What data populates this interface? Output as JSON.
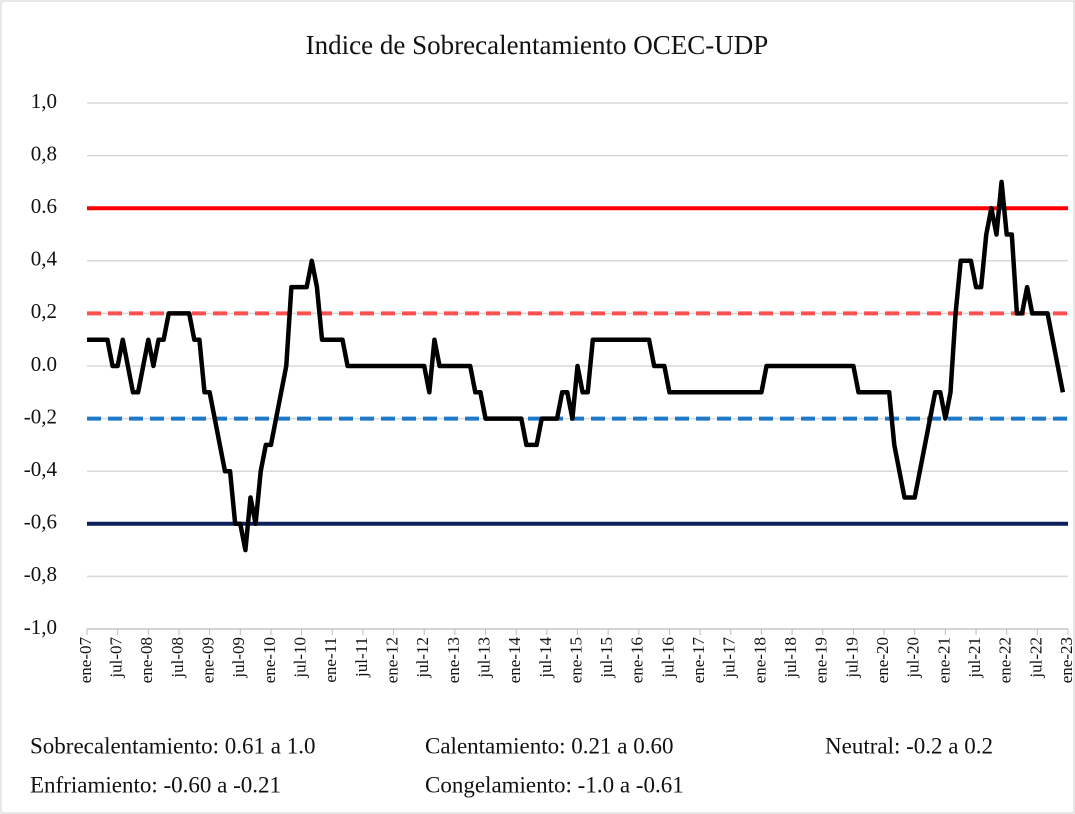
{
  "chart_data": {
    "type": "line",
    "title": "Indice de Sobrecalentamiento OCEC-UDP",
    "categories": [
      "ene-07",
      null,
      null,
      null,
      null,
      null,
      "jul-07",
      null,
      null,
      null,
      null,
      null,
      "ene-08",
      null,
      null,
      null,
      null,
      null,
      "jul-08",
      null,
      null,
      null,
      null,
      null,
      "ene-09",
      null,
      null,
      null,
      null,
      null,
      "jul-09",
      null,
      null,
      null,
      null,
      null,
      "ene-10",
      null,
      null,
      null,
      null,
      null,
      "jul-10",
      null,
      null,
      null,
      null,
      null,
      "ene-11",
      null,
      null,
      null,
      null,
      null,
      "jul-11",
      null,
      null,
      null,
      null,
      null,
      "ene-12",
      null,
      null,
      null,
      null,
      null,
      "jul-12",
      null,
      null,
      null,
      null,
      null,
      "ene-13",
      null,
      null,
      null,
      null,
      null,
      "jul-13",
      null,
      null,
      null,
      null,
      null,
      "ene-14",
      null,
      null,
      null,
      null,
      null,
      "jul-14",
      null,
      null,
      null,
      null,
      null,
      "ene-15",
      null,
      null,
      null,
      null,
      null,
      "jul-15",
      null,
      null,
      null,
      null,
      null,
      "ene-16",
      null,
      null,
      null,
      null,
      null,
      "jul-16",
      null,
      null,
      null,
      null,
      null,
      "ene-17",
      null,
      null,
      null,
      null,
      null,
      "jul-17",
      null,
      null,
      null,
      null,
      null,
      "ene-18",
      null,
      null,
      null,
      null,
      null,
      "jul-18",
      null,
      null,
      null,
      null,
      null,
      "ene-19",
      null,
      null,
      null,
      null,
      null,
      "jul-19",
      null,
      null,
      null,
      null,
      null,
      "ene-20",
      null,
      null,
      null,
      null,
      null,
      "jul-20",
      null,
      null,
      null,
      null,
      null,
      "ene-21",
      null,
      null,
      null,
      null,
      null,
      "jul-21",
      null,
      null,
      null,
      null,
      null,
      "ene-22",
      null,
      null,
      null,
      null,
      null,
      "jul-22",
      null,
      null,
      null,
      null,
      null,
      "ene-23"
    ],
    "series": [
      {
        "color": "#000000",
        "values": [
          0.1,
          0.1,
          0.1,
          0.1,
          0.1,
          0.0,
          0.0,
          0.1,
          0.0,
          -0.1,
          -0.1,
          0.0,
          0.1,
          0.0,
          0.1,
          0.1,
          0.2,
          0.2,
          0.2,
          0.2,
          0.2,
          0.1,
          0.1,
          -0.1,
          -0.1,
          -0.2,
          -0.3,
          -0.4,
          -0.4,
          -0.6,
          -0.6,
          -0.7,
          -0.5,
          -0.6,
          -0.4,
          -0.3,
          -0.3,
          -0.2,
          -0.1,
          0.0,
          0.3,
          0.3,
          0.3,
          0.3,
          0.4,
          0.3,
          0.1,
          0.1,
          0.1,
          0.1,
          0.1,
          0.0,
          0.0,
          0.0,
          0.0,
          0.0,
          0.0,
          0.0,
          0.0,
          0.0,
          0.0,
          0.0,
          0.0,
          0.0,
          0.0,
          0.0,
          0.0,
          -0.1,
          0.1,
          0.0,
          0.0,
          0.0,
          0.0,
          0.0,
          0.0,
          0.0,
          -0.1,
          -0.1,
          -0.2,
          -0.2,
          -0.2,
          -0.2,
          -0.2,
          -0.2,
          -0.2,
          -0.2,
          -0.3,
          -0.3,
          -0.3,
          -0.2,
          -0.2,
          -0.2,
          -0.2,
          -0.1,
          -0.1,
          -0.2,
          0.0,
          -0.1,
          -0.1,
          0.1,
          0.1,
          0.1,
          0.1,
          0.1,
          0.1,
          0.1,
          0.1,
          0.1,
          0.1,
          0.1,
          0.1,
          0.0,
          0.0,
          0.0,
          -0.1,
          -0.1,
          -0.1,
          -0.1,
          -0.1,
          -0.1,
          -0.1,
          -0.1,
          -0.1,
          -0.1,
          -0.1,
          -0.1,
          -0.1,
          -0.1,
          -0.1,
          -0.1,
          -0.1,
          -0.1,
          -0.1,
          0.0,
          0.0,
          0.0,
          0.0,
          0.0,
          0.0,
          0.0,
          0.0,
          0.0,
          0.0,
          0.0,
          0.0,
          0.0,
          0.0,
          0.0,
          0.0,
          0.0,
          0.0,
          -0.1,
          -0.1,
          -0.1,
          -0.1,
          -0.1,
          -0.1,
          -0.1,
          -0.3,
          -0.4,
          -0.5,
          -0.5,
          -0.5,
          -0.4,
          -0.3,
          -0.2,
          -0.1,
          -0.1,
          -0.2,
          -0.1,
          0.2,
          0.4,
          0.4,
          0.4,
          0.3,
          0.3,
          0.5,
          0.6,
          0.5,
          0.7,
          0.5,
          0.5,
          0.2,
          0.2,
          0.3,
          0.2,
          0.2,
          0.2,
          0.2,
          0.1,
          0.0,
          -0.1,
          null
        ]
      }
    ],
    "hlines": [
      {
        "value": 0.6,
        "color": "#ff0000",
        "dashed": false
      },
      {
        "value": 0.2,
        "color": "#ff5050",
        "dashed": true
      },
      {
        "value": -0.2,
        "color": "#1f78c8",
        "dashed": true
      },
      {
        "value": -0.6,
        "color": "#0a1f5c",
        "dashed": false
      }
    ],
    "ylim": [
      -1.0,
      1.0
    ],
    "yticks": [
      {
        "value": 1.0,
        "label": "1,0"
      },
      {
        "value": 0.8,
        "label": "0,8"
      },
      0.6,
      {
        "value": 0.4,
        "label": "0,4"
      },
      {
        "value": 0.2,
        "label": "0,2"
      },
      {
        "value": 0.0,
        "label": "0.0"
      },
      {
        "value": -0.2,
        "label": "-0,2"
      },
      {
        "value": -0.4,
        "label": "-0,4"
      },
      {
        "value": -0.6,
        "label": "-0,6"
      },
      {
        "value": -0.8,
        "label": "-0,8"
      },
      {
        "value": -1.0,
        "label": "-1,0"
      }
    ],
    "grid": true,
    "notes": [
      "Sobrecalentamiento: 0.61 a 1.0",
      "Calentamiento: 0.21 a 0.60",
      "Neutral: -0.2 a 0.2",
      "Enfriamiento: -0.60 a -0.21",
      "Congelamiento: -1.0 a -0.61"
    ]
  }
}
